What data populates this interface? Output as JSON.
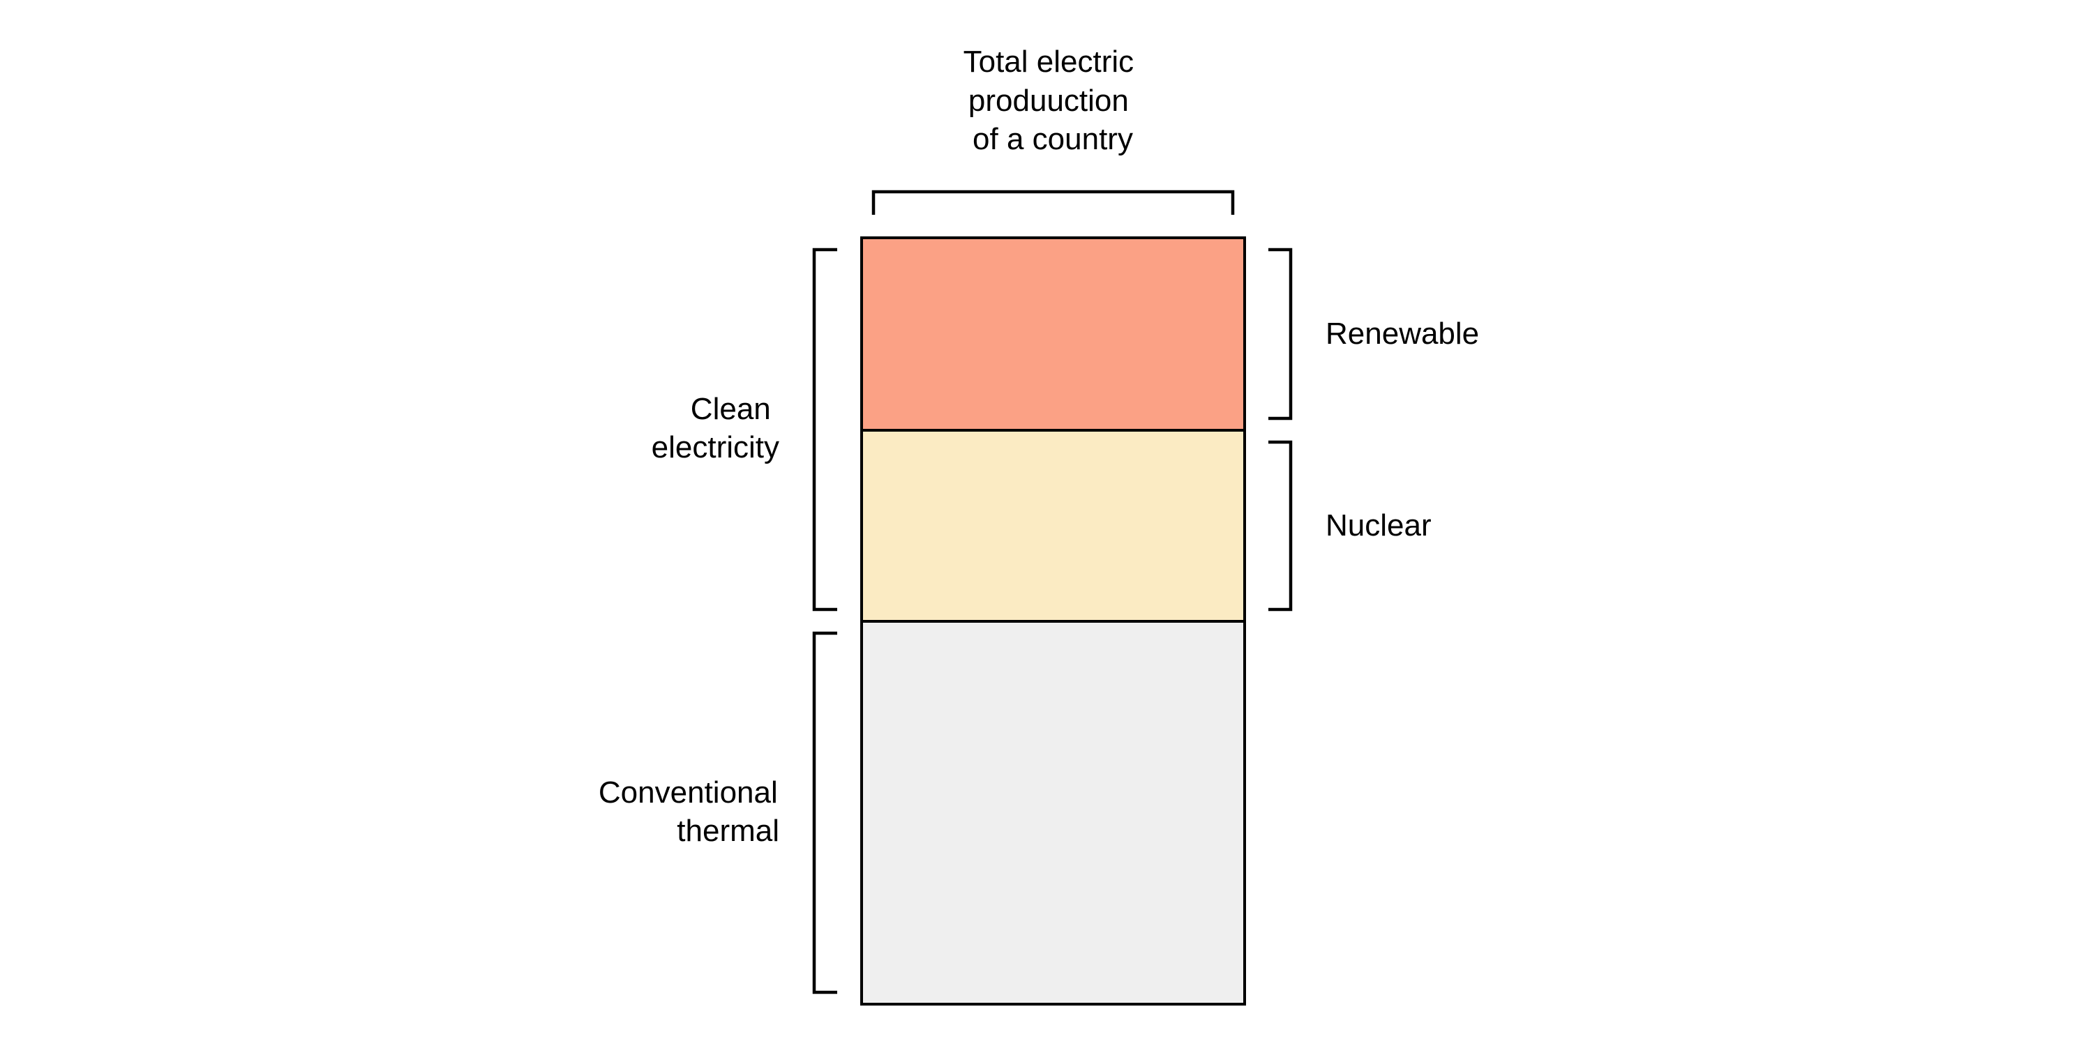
{
  "top_label": [
    "Total electric",
    "produuction",
    "of a country"
  ],
  "segments": [
    {
      "id": "renewable",
      "label": "Renewable",
      "color": "#fba185"
    },
    {
      "id": "nuclear",
      "label": "Nuclear",
      "color": "#fbebc3"
    },
    {
      "id": "conventional",
      "label": "Conventional thermal",
      "color": "#efefef"
    }
  ],
  "left_labels": {
    "clean": [
      "Clean",
      "electricity"
    ],
    "conventional": [
      "Conventional",
      "thermal"
    ]
  },
  "right_labels": {
    "renewable": "Renewable",
    "nuclear": "Nuclear"
  }
}
